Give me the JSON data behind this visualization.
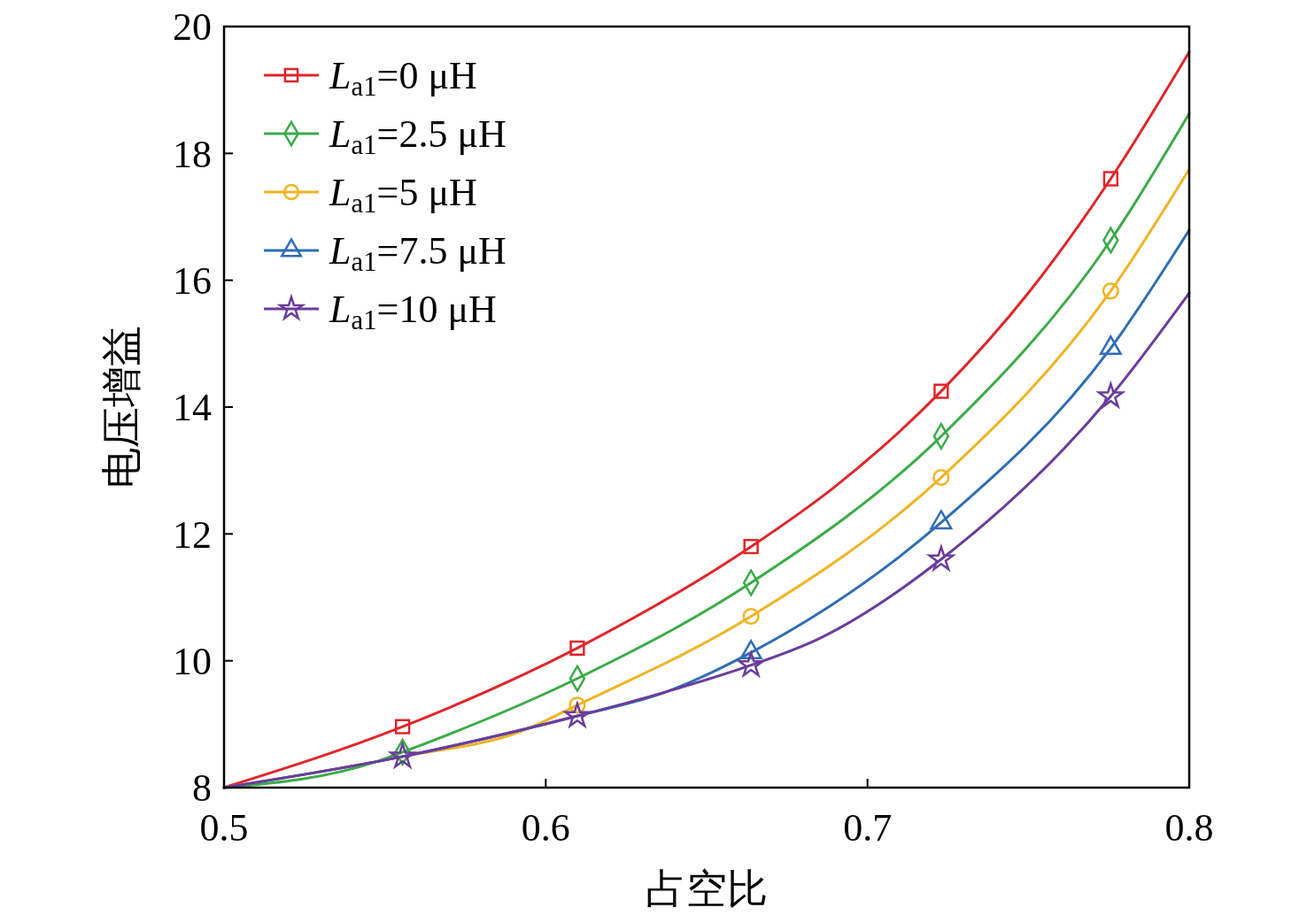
{
  "chart_data": {
    "type": "line",
    "xlabel": "占空比",
    "ylabel": "电压增益",
    "xlim": [
      0.5,
      0.8
    ],
    "xticks": [
      0.5,
      0.6,
      0.7,
      0.8
    ],
    "ylim": [
      8,
      20
    ],
    "yticks": [
      8,
      10,
      12,
      14,
      16,
      18,
      20
    ],
    "grid": false,
    "legend": "top left",
    "line_style": "solid",
    "marker": "none",
    "series": [
      {
        "name": "L$_{a1}$=0 μH",
        "color": "#e0262b",
        "x": [
          0.5,
          0.5555,
          0.6098,
          0.6638,
          0.69,
          0.7229,
          0.75,
          0.7756,
          0.8
        ],
        "values": [
          8,
          8.96,
          10.2,
          11.8,
          12.75,
          14.25,
          15.8,
          17.6,
          19.6
        ]
      },
      {
        "type": "scatter",
        "color": "#e0262b",
        "marker": "square",
        "x": [
          0.5555,
          0.6098,
          0.6638,
          0.7229,
          0.7756
        ],
        "values": [
          8.96,
          10.2,
          11.8,
          14.25,
          17.6
        ]
      },
      {
        "name": "L$_{a1}$=2.5 μH",
        "color": "#3aab48",
        "x": [
          0.5,
          0.548,
          0.5555,
          0.6098,
          0.6638,
          0.7229,
          0.7756,
          0.8
        ],
        "values": [
          8,
          8.42,
          8.56,
          9.72,
          11.23,
          13.54,
          16.63,
          18.63
        ]
      },
      {
        "type": "scatter",
        "color": "#3aab48",
        "marker": "diamond",
        "x": [
          0.5555,
          0.6098,
          0.6638,
          0.7229,
          0.7756
        ],
        "values": [
          8.56,
          9.72,
          11.23,
          13.54,
          16.63
        ]
      },
      {
        "name": "L$_{a1}$=5 μH",
        "color": "#f0b323",
        "x": [
          0.5,
          0.5555,
          0.593,
          0.6098,
          0.6638,
          0.7229,
          0.7756,
          0.8
        ],
        "values": [
          8,
          8.49,
          8.9,
          9.3,
          10.7,
          12.89,
          15.83,
          17.75
        ]
      },
      {
        "type": "scatter",
        "color": "#f0b323",
        "marker": "circle",
        "x": [
          0.6098,
          0.6638,
          0.7229,
          0.7756
        ],
        "values": [
          9.3,
          10.7,
          12.89,
          15.83
        ]
      },
      {
        "name": "L$_{a1}$=7.5 μH",
        "color": "#2f6db5",
        "x": [
          0.5,
          0.5555,
          0.6098,
          0.638,
          0.6638,
          0.7229,
          0.7756,
          0.8
        ],
        "values": [
          8,
          8.49,
          9.13,
          9.52,
          10.13,
          12.18,
          14.93,
          16.79
        ]
      },
      {
        "type": "scatter",
        "color": "#2f6db5",
        "marker": "triangle",
        "x": [
          0.6638,
          0.7229,
          0.7756
        ],
        "values": [
          10.13,
          12.18,
          14.93
        ]
      },
      {
        "name": "L$_{a1}$=10 μH",
        "color": "#6a3d9a",
        "x": [
          0.5,
          0.5555,
          0.6098,
          0.638,
          0.6638,
          0.685,
          0.7229,
          0.7756,
          0.8
        ],
        "values": [
          8,
          8.49,
          9.13,
          9.52,
          9.93,
          10.35,
          11.6,
          14.17,
          15.8
        ]
      },
      {
        "type": "scatter",
        "color": "#6a3d9a",
        "marker": "star",
        "x": [
          0.5555,
          0.6098,
          0.6638,
          0.7229,
          0.7756
        ],
        "values": [
          8.49,
          9.13,
          9.93,
          11.6,
          14.17
        ]
      }
    ]
  }
}
